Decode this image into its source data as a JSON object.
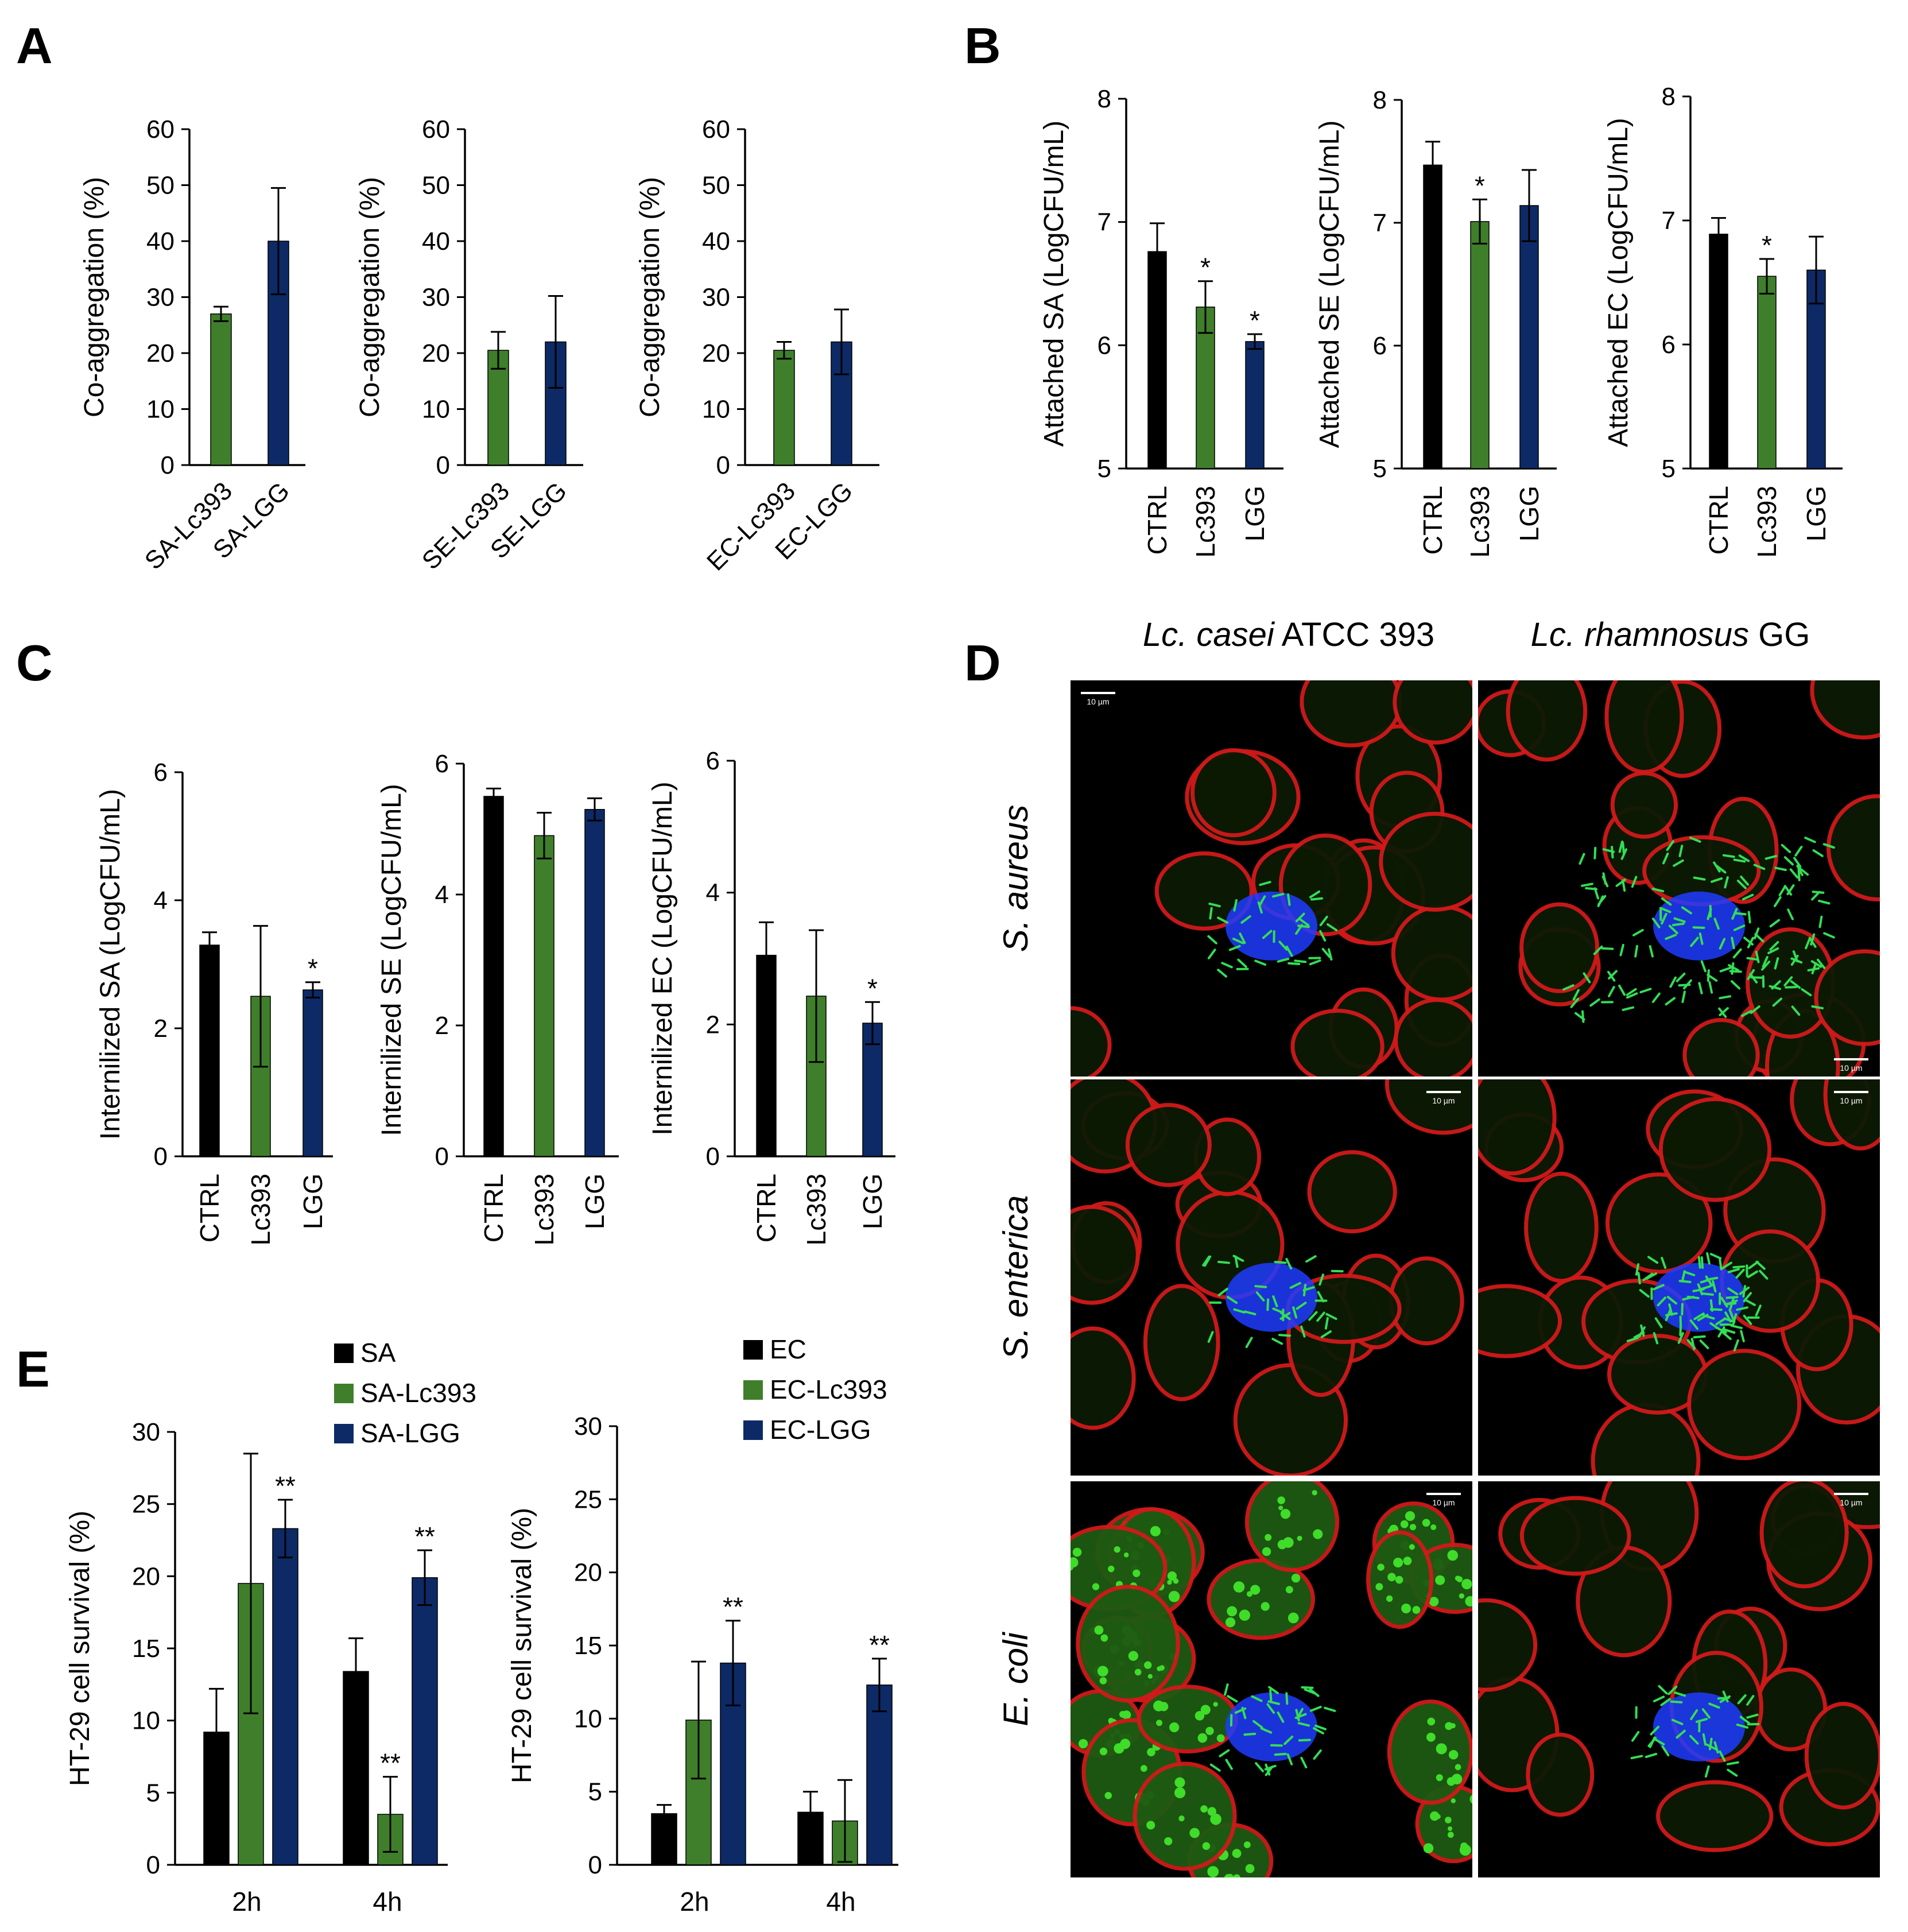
{
  "panel_letters": [
    "A",
    "B",
    "C",
    "D",
    "E"
  ],
  "colors": {
    "ctrl": "#000000",
    "lc393": "#3f7f2b",
    "lgg": "#0d2a66"
  },
  "panel_d": {
    "column_labels": [
      {
        "italic": "Lc. casei",
        "normal": " ATCC 393"
      },
      {
        "italic": "Lc. rhamnosus",
        "normal": " GG"
      }
    ],
    "row_labels": [
      "S. aureus",
      "S. enterica",
      "E. coli"
    ],
    "scale_bar_label": "10 µm"
  },
  "chart_data": [
    {
      "panel": "A",
      "type": "bar",
      "ylabel": "Co-aggregation (%)",
      "ylim": [
        0,
        60
      ],
      "yticks": [
        0,
        10,
        20,
        30,
        40,
        50,
        60
      ],
      "categories": [
        "SA-Lc393",
        "SA-LGG"
      ],
      "values": [
        27,
        40
      ],
      "errors": [
        1.3,
        9.5
      ],
      "colors": [
        "#3f7f2b",
        "#0d2a66"
      ],
      "stars": [
        "",
        ""
      ]
    },
    {
      "panel": "A",
      "type": "bar",
      "ylabel": "Co-aggregation (%)",
      "ylim": [
        0,
        60
      ],
      "yticks": [
        0,
        10,
        20,
        30,
        40,
        50,
        60
      ],
      "categories": [
        "SE-Lc393",
        "SE-LGG"
      ],
      "values": [
        20.5,
        22
      ],
      "errors": [
        3.3,
        8.2
      ],
      "colors": [
        "#3f7f2b",
        "#0d2a66"
      ],
      "stars": [
        "",
        ""
      ]
    },
    {
      "panel": "A",
      "type": "bar",
      "ylabel": "Co-aggregation (%)",
      "ylim": [
        0,
        60
      ],
      "yticks": [
        0,
        10,
        20,
        30,
        40,
        50,
        60
      ],
      "categories": [
        "EC-Lc393",
        "EC-LGG"
      ],
      "values": [
        20.5,
        22
      ],
      "errors": [
        1.5,
        5.8
      ],
      "colors": [
        "#3f7f2b",
        "#0d2a66"
      ],
      "stars": [
        "",
        ""
      ]
    },
    {
      "panel": "B",
      "type": "bar",
      "ylabel": "Attached SA (LogCFU/mL)",
      "ylim": [
        5,
        8
      ],
      "yticks": [
        5,
        6,
        7,
        8
      ],
      "categories": [
        "CTRL",
        "Lc393",
        "LGG"
      ],
      "values": [
        6.76,
        6.31,
        6.03
      ],
      "errors": [
        0.23,
        0.21,
        0.06
      ],
      "colors": [
        "#000000",
        "#3f7f2b",
        "#0d2a66"
      ],
      "stars": [
        "",
        "*",
        "*"
      ]
    },
    {
      "panel": "B",
      "type": "bar",
      "ylabel": "Attached SE (LogCFU/mL)",
      "ylim": [
        5,
        8
      ],
      "yticks": [
        5,
        6,
        7,
        8
      ],
      "categories": [
        "CTRL",
        "Lc393",
        "LGG"
      ],
      "values": [
        7.47,
        7.01,
        7.14
      ],
      "errors": [
        0.19,
        0.18,
        0.29
      ],
      "colors": [
        "#000000",
        "#3f7f2b",
        "#0d2a66"
      ],
      "stars": [
        "",
        "*",
        ""
      ]
    },
    {
      "panel": "B",
      "type": "bar",
      "ylabel": "Attached EC (LogCFU/mL)",
      "ylim": [
        5,
        8
      ],
      "yticks": [
        5,
        6,
        7,
        8
      ],
      "categories": [
        "CTRL",
        "Lc393",
        "LGG"
      ],
      "values": [
        6.89,
        6.55,
        6.6
      ],
      "errors": [
        0.13,
        0.14,
        0.27
      ],
      "colors": [
        "#000000",
        "#3f7f2b",
        "#0d2a66"
      ],
      "stars": [
        "",
        "*",
        ""
      ]
    },
    {
      "panel": "C",
      "type": "bar",
      "ylabel": "Internilized SA (LogCFU/mL)",
      "ylim": [
        0,
        6
      ],
      "yticks": [
        0,
        2,
        4,
        6
      ],
      "categories": [
        "CTRL",
        "Lc393",
        "LGG"
      ],
      "values": [
        3.3,
        2.5,
        2.6
      ],
      "errors": [
        0.2,
        1.1,
        0.12
      ],
      "colors": [
        "#000000",
        "#3f7f2b",
        "#0d2a66"
      ],
      "stars": [
        "",
        "",
        "*"
      ]
    },
    {
      "panel": "C",
      "type": "bar",
      "ylabel": "Internilized SE (LogCFU/mL)",
      "ylim": [
        0,
        6
      ],
      "yticks": [
        0,
        2,
        4,
        6
      ],
      "categories": [
        "CTRL",
        "Lc393",
        "LGG"
      ],
      "values": [
        5.5,
        4.9,
        5.3
      ],
      "errors": [
        0.12,
        0.35,
        0.17
      ],
      "colors": [
        "#000000",
        "#3f7f2b",
        "#0d2a66"
      ],
      "stars": [
        "",
        "",
        ""
      ]
    },
    {
      "panel": "C",
      "type": "bar",
      "ylabel": "Internilized EC (LogCFU/mL)",
      "ylim": [
        0,
        6
      ],
      "yticks": [
        0,
        2,
        4,
        6
      ],
      "categories": [
        "CTRL",
        "Lc393",
        "LGG"
      ],
      "values": [
        3.05,
        2.43,
        2.02
      ],
      "errors": [
        0.5,
        1.0,
        0.32
      ],
      "colors": [
        "#000000",
        "#3f7f2b",
        "#0d2a66"
      ],
      "stars": [
        "",
        "",
        "*"
      ]
    },
    {
      "panel": "E",
      "type": "bar",
      "ylabel": "HT-29 cell survival (%)",
      "ylim": [
        0,
        30
      ],
      "yticks": [
        0,
        5,
        10,
        15,
        20,
        25,
        30
      ],
      "categories": [
        "2h",
        "4h"
      ],
      "legend": "top-left",
      "series": [
        {
          "name": "SA",
          "color": "#000000",
          "values": [
            9.2,
            13.4
          ],
          "errors": [
            3.0,
            2.3
          ],
          "stars": [
            "",
            ""
          ]
        },
        {
          "name": "SA-Lc393",
          "color": "#3f7f2b",
          "values": [
            19.5,
            3.5
          ],
          "errors": [
            9.0,
            2.6
          ],
          "stars": [
            "",
            "**"
          ]
        },
        {
          "name": "SA-LGG",
          "color": "#0d2a66",
          "values": [
            23.3,
            19.9
          ],
          "errors": [
            2.0,
            1.9
          ],
          "stars": [
            "**",
            "**"
          ]
        }
      ]
    },
    {
      "panel": "E",
      "type": "bar",
      "ylabel": "HT-29 cell survival (%)",
      "ylim": [
        0,
        30
      ],
      "yticks": [
        0,
        5,
        10,
        15,
        20,
        25,
        30
      ],
      "categories": [
        "2h",
        "4h"
      ],
      "legend": "top-left",
      "series": [
        {
          "name": "EC",
          "color": "#000000",
          "values": [
            3.5,
            3.6
          ],
          "errors": [
            0.6,
            1.4
          ],
          "stars": [
            "",
            ""
          ]
        },
        {
          "name": "EC-Lc393",
          "color": "#3f7f2b",
          "values": [
            9.9,
            3.0
          ],
          "errors": [
            4.0,
            2.8
          ],
          "stars": [
            "",
            ""
          ]
        },
        {
          "name": "EC-LGG",
          "color": "#0d2a66",
          "values": [
            13.8,
            12.3
          ],
          "errors": [
            2.9,
            1.8
          ],
          "stars": [
            "**",
            "**"
          ]
        }
      ]
    }
  ]
}
